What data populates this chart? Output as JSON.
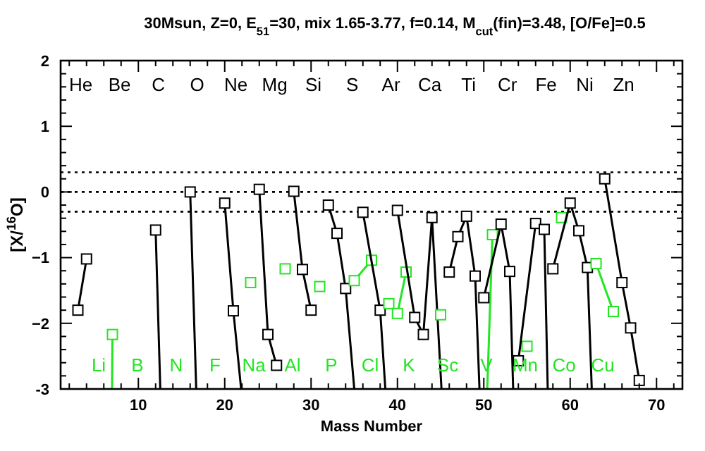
{
  "chart_data": {
    "type": "line",
    "title": "30Msun, Z=0, E$_{51}$=30, mix 1.65-3.77, f=0.14, M$_{cut}$(fin)=3.48, [O/Fe]=0.5",
    "xlabel": "Mass Number",
    "ylabel": "[X/$^{16}$O]",
    "xlim": [
      1,
      73
    ],
    "ylim": [
      -3,
      2
    ],
    "xticks": [
      {
        "value": 2,
        "label": null
      },
      {
        "value": 4,
        "label": null
      },
      {
        "value": 6,
        "label": null
      },
      {
        "value": 8,
        "label": null
      },
      10,
      {
        "value": 12,
        "label": null
      },
      {
        "value": 14,
        "label": null
      },
      {
        "value": 16,
        "label": null
      },
      {
        "value": 18,
        "label": null
      },
      20,
      {
        "value": 22,
        "label": null
      },
      {
        "value": 24,
        "label": null
      },
      {
        "value": 26,
        "label": null
      },
      {
        "value": 28,
        "label": null
      },
      30,
      {
        "value": 32,
        "label": null
      },
      {
        "value": 34,
        "label": null
      },
      {
        "value": 36,
        "label": null
      },
      {
        "value": 38,
        "label": null
      },
      40,
      {
        "value": 42,
        "label": null
      },
      {
        "value": 44,
        "label": null
      },
      {
        "value": 46,
        "label": null
      },
      {
        "value": 48,
        "label": null
      },
      50,
      {
        "value": 52,
        "label": null
      },
      {
        "value": 54,
        "label": null
      },
      {
        "value": 56,
        "label": null
      },
      {
        "value": 58,
        "label": null
      },
      60,
      {
        "value": 62,
        "label": null
      },
      {
        "value": 64,
        "label": null
      },
      {
        "value": 66,
        "label": null
      },
      {
        "value": 68,
        "label": null
      },
      70,
      {
        "value": 72,
        "label": null
      }
    ],
    "yticks": [
      -3,
      {
        "value": -2.8,
        "label": null
      },
      {
        "value": -2.6,
        "label": null
      },
      {
        "value": -2.4,
        "label": null
      },
      {
        "value": -2.2,
        "label": null
      },
      {
        "value": -2,
        "label": "−2"
      },
      {
        "value": -1.8,
        "label": null
      },
      {
        "value": -1.6,
        "label": null
      },
      {
        "value": -1.4,
        "label": null
      },
      {
        "value": -1.2,
        "label": null
      },
      {
        "value": -1,
        "label": "−1"
      },
      {
        "value": -0.8,
        "label": null
      },
      {
        "value": -0.6,
        "label": null
      },
      {
        "value": -0.4,
        "label": null
      },
      {
        "value": -0.2,
        "label": null
      },
      0,
      {
        "value": 0.2,
        "label": null
      },
      {
        "value": 0.4,
        "label": null
      },
      {
        "value": 0.6,
        "label": null
      },
      {
        "value": 0.8,
        "label": null
      },
      1,
      {
        "value": 1.2,
        "label": null
      },
      {
        "value": 1.4,
        "label": null
      },
      {
        "value": 1.6,
        "label": null
      },
      {
        "value": 1.8,
        "label": null
      },
      2
    ],
    "marker": "square",
    "ref_lines": [
      {
        "axis": "y",
        "value": 0.3,
        "line_style": "dotted",
        "color": "#000000"
      },
      {
        "axis": "y",
        "value": 0,
        "line_style": "dotted",
        "color": "#000000"
      },
      {
        "axis": "y",
        "value": -0.3,
        "line_style": "dotted",
        "color": "#000000"
      }
    ],
    "series": [
      {
        "color": "#000000",
        "x": [
          3,
          4
        ],
        "values": [
          -1.8,
          -1.02
        ]
      },
      {
        "color": "#22e622",
        "x": [
          7,
          6.95
        ],
        "values": [
          -2.17,
          -3
        ]
      },
      {
        "color": "#000000",
        "x": [
          12,
          12.54
        ],
        "values": [
          -0.58,
          -3
        ]
      },
      {
        "color": "#000000",
        "x": [
          16,
          16.7
        ],
        "values": [
          0,
          -3
        ]
      },
      {
        "color": "#000000",
        "x": [
          20,
          21,
          21.9
        ],
        "values": [
          -0.17,
          -1.81,
          -3
        ]
      },
      {
        "color": "#22e622",
        "x": [
          23
        ],
        "values": [
          -1.38
        ]
      },
      {
        "color": "#000000",
        "x": [
          24,
          25,
          26
        ],
        "values": [
          0.04,
          -2.17,
          -2.64
        ]
      },
      {
        "color": "#22e622",
        "x": [
          27
        ],
        "values": [
          -1.17
        ]
      },
      {
        "color": "#000000",
        "x": [
          28,
          29,
          30
        ],
        "values": [
          0.01,
          -1.18,
          -1.8
        ]
      },
      {
        "color": "#22e622",
        "x": [
          31
        ],
        "values": [
          -1.44
        ]
      },
      {
        "color": "#000000",
        "x": [
          32,
          33,
          34,
          35
        ],
        "values": [
          -0.2,
          -0.63,
          -1.47,
          -3
        ]
      },
      {
        "color": "#22e622",
        "x": [
          35,
          37
        ],
        "values": [
          -1.35,
          -1.04
        ]
      },
      {
        "color": "#000000",
        "x": [
          36,
          38,
          38.6
        ],
        "values": [
          -0.31,
          -1.8,
          -3
        ]
      },
      {
        "color": "#22e622",
        "x": [
          39,
          40,
          41
        ],
        "values": [
          -1.7,
          -1.85,
          -1.22
        ]
      },
      {
        "color": "#000000",
        "x": [
          40,
          42,
          43,
          44,
          45.1
        ],
        "values": [
          -0.28,
          -1.91,
          -2.17,
          -0.39,
          -3
        ]
      },
      {
        "color": "#22e622",
        "x": [
          45
        ],
        "values": [
          -1.87
        ]
      },
      {
        "color": "#000000",
        "x": [
          46,
          47,
          48,
          49,
          49.5
        ],
        "values": [
          -1.22,
          -0.68,
          -0.37,
          -1.28,
          -3
        ]
      },
      {
        "color": "#22e622",
        "x": [
          51,
          50.4
        ],
        "values": [
          -0.65,
          -3
        ]
      },
      {
        "color": "#000000",
        "x": [
          50,
          52,
          53,
          53.4
        ],
        "values": [
          -1.61,
          -0.49,
          -1.21,
          -3
        ]
      },
      {
        "color": "#22e622",
        "x": [
          55
        ],
        "values": [
          -2.35
        ]
      },
      {
        "color": "#000000",
        "x": [
          54,
          56,
          57,
          57.4
        ],
        "values": [
          -2.57,
          -0.48,
          -0.57,
          -3
        ]
      },
      {
        "color": "#22e622",
        "x": [
          59
        ],
        "values": [
          -0.39
        ]
      },
      {
        "color": "#000000",
        "x": [
          58,
          60,
          61,
          62,
          62.5
        ],
        "values": [
          -1.17,
          -0.17,
          -0.59,
          -1.15,
          -3
        ]
      },
      {
        "color": "#22e622",
        "x": [
          63,
          65
        ],
        "values": [
          -1.09,
          -1.82
        ]
      },
      {
        "color": "#000000",
        "x": [
          64,
          66,
          67,
          68
        ],
        "values": [
          0.2,
          -1.38,
          -2.07,
          -2.87
        ]
      }
    ],
    "annotations": [
      "He",
      "Be",
      "C",
      "O",
      "Ne",
      "Mg",
      "Si",
      "S",
      "Ar",
      "Ca",
      "Ti",
      "Cr",
      "Fe",
      "Ni",
      "Zn",
      "Li",
      "B",
      "N",
      "F",
      "Na",
      "Al",
      "P",
      "Cl",
      "K",
      "Sc",
      "V",
      "Mn",
      "Co",
      "Cu"
    ]
  }
}
